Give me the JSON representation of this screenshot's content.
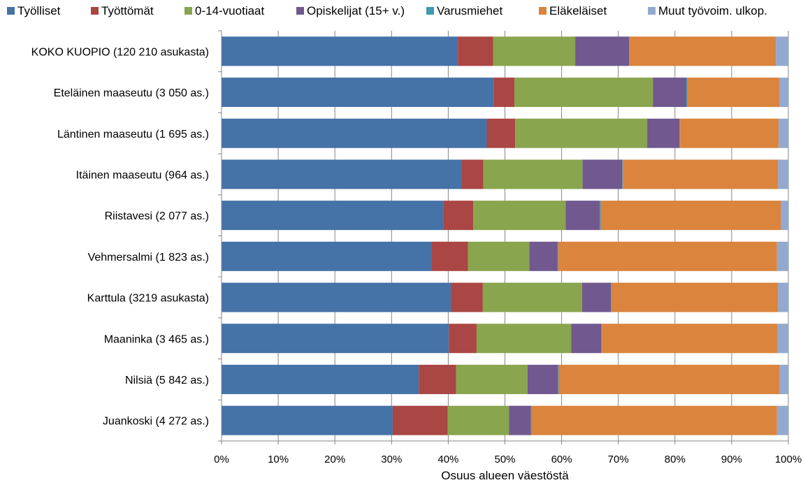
{
  "chart_data": {
    "type": "bar",
    "orientation": "horizontal",
    "stacked": true,
    "percent_stacked": true,
    "title": "",
    "xlabel": "Osuus alueen väestöstä",
    "ylabel": "",
    "xlim": [
      0,
      100
    ],
    "x_ticks": [
      "0%",
      "10%",
      "20%",
      "30%",
      "40%",
      "50%",
      "60%",
      "70%",
      "80%",
      "90%",
      "100%"
    ],
    "grid": "vertical",
    "legend_position": "top",
    "categories": [
      "KOKO KUOPIO (120 210 asukasta)",
      "Eteläinen maaseutu (3 050 as.)",
      "Läntinen maaseutu (1 695 as.)",
      "Itäinen maaseutu (964 as.)",
      "Riistavesi (2 077 as.)",
      "Vehmersalmi (1 823 as.)",
      "Karttula (3219 asukasta)",
      "Maaninka (3 465 as.)",
      "Nilsiä (5 842 as.)",
      "Juankoski (4 272 as.)"
    ],
    "series": [
      {
        "name": "Työlliset",
        "color": "#4572A7",
        "values": [
          41.7,
          48.0,
          46.8,
          42.3,
          39.1,
          37.0,
          40.5,
          40.1,
          34.8,
          30.2
        ]
      },
      {
        "name": "Työttömät",
        "color": "#AA4643",
        "values": [
          6.2,
          3.7,
          5.0,
          3.9,
          5.3,
          6.5,
          5.6,
          4.9,
          6.6,
          9.7
        ]
      },
      {
        "name": "0-14-vuotiaat",
        "color": "#89A54E",
        "values": [
          14.5,
          24.4,
          23.3,
          17.5,
          16.3,
          10.8,
          17.5,
          16.7,
          12.6,
          10.8
        ]
      },
      {
        "name": "Opiskelijat (15+ v.)",
        "color": "#71588F",
        "values": [
          9.5,
          5.9,
          5.7,
          7.0,
          6.0,
          5.0,
          5.1,
          5.3,
          5.4,
          3.9
        ]
      },
      {
        "name": "Varusmiehet",
        "color": "#4198AF",
        "values": [
          0.1,
          0.2,
          0.1,
          0.1,
          0.2,
          0.1,
          0.1,
          0.1,
          0.1,
          0.1
        ]
      },
      {
        "name": "Eläkeläiset",
        "color": "#DB843D",
        "values": [
          25.8,
          16.2,
          17.4,
          27.4,
          31.8,
          38.6,
          29.4,
          31.0,
          38.9,
          43.3
        ]
      },
      {
        "name": "Muut työvoim. ulkop.",
        "color": "#93A9CF",
        "values": [
          2.2,
          1.6,
          1.7,
          1.8,
          1.3,
          2.0,
          1.8,
          1.9,
          1.6,
          2.0
        ]
      }
    ]
  }
}
